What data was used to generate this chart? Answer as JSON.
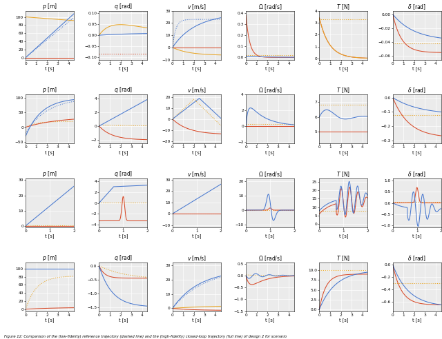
{
  "colors": {
    "blue": "#4878cf",
    "red": "#d84b2a",
    "orange": "#e8a628"
  },
  "background": "#ebebeb",
  "grid_color": "#ffffff",
  "caption": "Figure 12: Comparison of the (low-fidelity) reference trajectory (dashed line) and the (high-fidelity) closed-loop trajectory (full line) of design 2 for scenario",
  "tlims": [
    4.5,
    4.5,
    2.0,
    4.5
  ]
}
